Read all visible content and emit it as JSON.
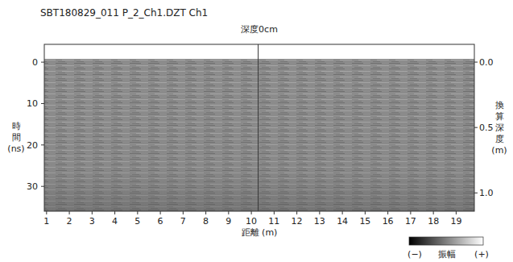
{
  "chart_data": {
    "type": "radargram",
    "title": "SBT180829_011 P_2_Ch1.DZT   Ch1",
    "subtitle": "深度0cm",
    "x_label": "距離 (m)",
    "y_label": "時間 (ns)",
    "y2_label": "換算深度 (m)",
    "xlim": [
      0.9,
      19.8
    ],
    "xticks": [
      1,
      2,
      3,
      4,
      5,
      6,
      7,
      8,
      9,
      10,
      11,
      12,
      13,
      14,
      15,
      16,
      17,
      18,
      19
    ],
    "ylim": [
      -0.8,
      36
    ],
    "yticks": [
      0,
      10,
      20,
      30
    ],
    "y2lim": [
      -0.025,
      1.14
    ],
    "y2ticks": [
      {
        "value": 0,
        "label": "0.0"
      },
      {
        "value": 0.5,
        "label": "0.5"
      },
      {
        "value": 1,
        "label": "1.0"
      }
    ],
    "marker_x": 10.3,
    "colorbar": {
      "label": "振幅",
      "min_label": "(−)",
      "max_label": "(+)"
    }
  }
}
